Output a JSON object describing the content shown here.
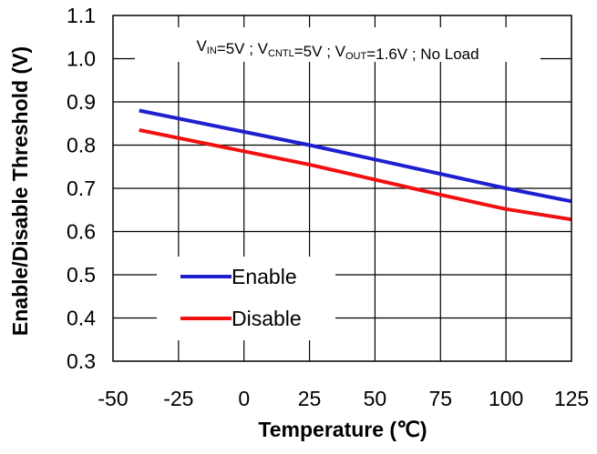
{
  "chart_data": {
    "type": "line",
    "title": "",
    "annotation": {
      "parts": [
        {
          "text": "V",
          "sub": false
        },
        {
          "text": "IN",
          "sub": true
        },
        {
          "text": "=5V ; V",
          "sub": false
        },
        {
          "text": "CNTL",
          "sub": true
        },
        {
          "text": "=5V ; V",
          "sub": false
        },
        {
          "text": "OUT",
          "sub": true
        },
        {
          "text": "=1.6V ; No Load",
          "sub": false
        }
      ]
    },
    "xlabel": "Temperature (℃)",
    "ylabel": "Enable/Disable Threshold (V)",
    "xlim": [
      -50,
      125
    ],
    "ylim": [
      0.3,
      1.1
    ],
    "xticks": [
      -50,
      -25,
      0,
      25,
      50,
      75,
      100,
      125
    ],
    "yticks": [
      0.3,
      0.4,
      0.5,
      0.6,
      0.7,
      0.8,
      0.9,
      1.0,
      1.1
    ],
    "grid": true,
    "legend_position": "bottom-left",
    "series": [
      {
        "name": "Enable",
        "color": "#1f1fd0",
        "x": [
          -40,
          25,
          100,
          125
        ],
        "y": [
          0.88,
          0.8,
          0.7,
          0.67
        ]
      },
      {
        "name": "Disable",
        "color": "#f01010",
        "x": [
          -40,
          25,
          75,
          100,
          125
        ],
        "y": [
          0.835,
          0.755,
          0.685,
          0.652,
          0.628
        ]
      }
    ]
  }
}
